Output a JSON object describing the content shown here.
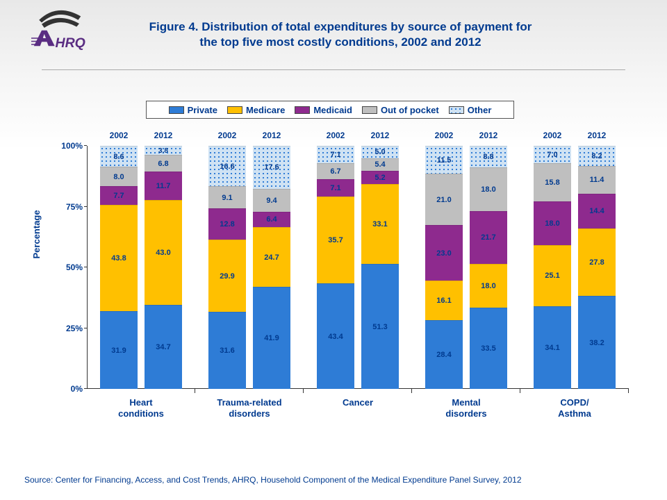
{
  "title_line1": "Figure 4. Distribution of total expenditures by source of payment for",
  "title_line2": "the top five most costly conditions, 2002 and 2012",
  "source": "Source: Center for Financing, Access, and Cost Trends, AHRQ, Household Component of the Medical Expenditure Panel Survey, 2012",
  "y_label": "Percentage",
  "chart": {
    "type": "stacked-bar",
    "ylim": [
      0,
      100
    ],
    "yticks": [
      0,
      25,
      50,
      75,
      100
    ],
    "ytick_suffix": "%",
    "years": [
      "2002",
      "2012"
    ],
    "series": [
      {
        "name": "Private",
        "color": "#2e7cd6",
        "pattern": "solid"
      },
      {
        "name": "Medicare",
        "color": "#ffc000",
        "pattern": "solid"
      },
      {
        "name": "Medicaid",
        "color": "#8e2a8e",
        "pattern": "solid"
      },
      {
        "name": "Out of pocket",
        "color": "#bfbfbf",
        "pattern": "solid"
      },
      {
        "name": "Other",
        "color": "#cfe2f3",
        "pattern": "dots",
        "dot_color": "#2e7cd6"
      }
    ],
    "groups": [
      {
        "label": "Heart\nconditions",
        "bars": [
          {
            "year": "2002",
            "values": [
              31.9,
              43.8,
              7.7,
              8.0,
              8.6
            ]
          },
          {
            "year": "2012",
            "values": [
              34.7,
              43.0,
              11.7,
              6.8,
              3.8
            ]
          }
        ]
      },
      {
        "label": "Trauma-related\ndisorders",
        "bars": [
          {
            "year": "2002",
            "values": [
              31.6,
              29.9,
              12.8,
              9.1,
              16.6
            ]
          },
          {
            "year": "2012",
            "values": [
              41.9,
              24.7,
              6.4,
              9.4,
              17.6
            ]
          }
        ]
      },
      {
        "label": "Cancer",
        "bars": [
          {
            "year": "2002",
            "values": [
              43.4,
              35.7,
              7.1,
              6.7,
              7.1
            ]
          },
          {
            "year": "2012",
            "values": [
              51.3,
              33.1,
              5.2,
              5.4,
              5.0
            ]
          }
        ]
      },
      {
        "label": "Mental\ndisorders",
        "bars": [
          {
            "year": "2002",
            "values": [
              28.4,
              16.1,
              23.0,
              21.0,
              11.5
            ]
          },
          {
            "year": "2012",
            "values": [
              33.5,
              18.0,
              21.7,
              18.0,
              8.8
            ]
          }
        ]
      },
      {
        "label": "COPD/\nAsthma",
        "bars": [
          {
            "year": "2002",
            "values": [
              34.1,
              25.1,
              18.0,
              15.8,
              7.0
            ]
          },
          {
            "year": "2012",
            "values": [
              38.2,
              27.8,
              14.4,
              11.4,
              8.2
            ]
          }
        ]
      }
    ],
    "colors": {
      "text": "#003a8f",
      "axis": "#333333",
      "background": "#ffffff"
    },
    "fontsize": {
      "title": 17,
      "axis": 13,
      "tick": 12,
      "value": 11
    }
  },
  "logo": {
    "text": "AHRQ",
    "color_a": "#5a2d82",
    "color_swoosh": "#333333"
  }
}
